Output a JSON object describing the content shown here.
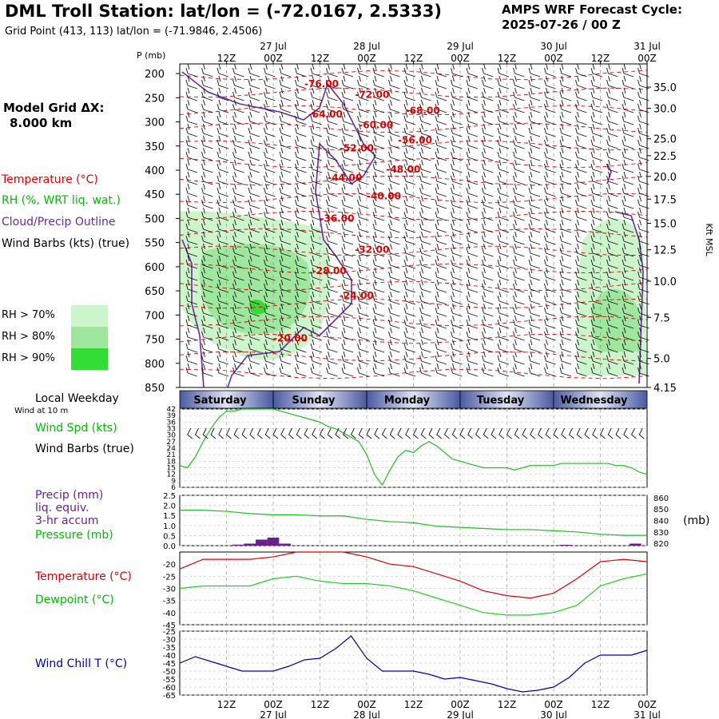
{
  "header": {
    "title": "DML Troll Station:  lat/lon = (-72.0167, 2.5333)",
    "grid_point": "Grid Point (413, 113) lat/lon = (-71.9846, 2.4506)",
    "cycle_label": "AMPS WRF Forecast Cycle:",
    "cycle_value": "2025-07-26 / 00  Z"
  },
  "left_panel": {
    "p_unit": "P (mb)",
    "model_grid_label": "Model Grid ΔX:",
    "model_grid_value": "8.000 km",
    "legend_temperature": "Temperature (°C)",
    "legend_rh": "RH (%, WRT liq. wat.)",
    "legend_cloud": "Cloud/Precip Outline",
    "legend_wind": "Wind Barbs (kts) (true)",
    "rh_levels": [
      {
        "label": "RH > 70%",
        "color": "#ccf5cc"
      },
      {
        "label": "RH > 80%",
        "color": "#9fe69f"
      },
      {
        "label": "RH > 90%",
        "color": "#33dd33"
      }
    ],
    "local_weekday": "Local Weekday",
    "wind_at_10m": "Wind at 10 m",
    "wind_spd_label": "Wind Spd (kts)",
    "wind_barbs_label": "Wind Barbs (true)",
    "precip_label": "Precip (mm)",
    "precip_sub1": "liq. equiv.",
    "precip_sub2": "3-hr accum",
    "pressure_label": "Pressure (mb)",
    "temp_label": "Temperature (°C)",
    "dewpoint_label": "Dewpoint (°C)",
    "windchill_label": "Wind Chill T (°C)"
  },
  "time_axis": {
    "hour_labels": [
      "12Z",
      "00Z",
      "12Z",
      "00Z",
      "12Z",
      "00Z",
      "12Z",
      "00Z",
      "12Z",
      "00Z"
    ],
    "date_labels": [
      "27 Jul",
      "28 Jul",
      "29 Jul",
      "30 Jul",
      "31 Jul"
    ],
    "weekdays": [
      "Saturday",
      "Sunday",
      "Monday",
      "Tuesday",
      "Wednesday"
    ]
  },
  "colors": {
    "temperature": "#dd0000",
    "rh": "#00bb00",
    "cloud": "#6a2a9a",
    "dewpoint": "#22cc22",
    "windchill": "#0000aa",
    "precip_bar": "#6a1f8a",
    "day_band_dark": "#4a5aa0",
    "day_band_light": "#dfe3f2"
  },
  "chart_data": [
    {
      "type": "heatmap",
      "panel": "cross-section",
      "title": "DML Troll Station:  lat/lon = (-72.0167, 2.5333)",
      "ylabel": "P (mb)",
      "ylabel_right": "Kft MSL",
      "pressure_ticks": [
        200,
        250,
        300,
        350,
        400,
        450,
        500,
        550,
        600,
        650,
        700,
        750,
        800,
        850
      ],
      "height_ticks_kft": [
        "35.0",
        "30.0",
        "25.0",
        "22.5",
        "20.0",
        "17.5",
        "15.0",
        "12.5",
        "10.0",
        "7.5",
        "5.0",
        "4.15"
      ],
      "height_tick_pressures": [
        228,
        272,
        335,
        370,
        413,
        460,
        510,
        565,
        630,
        705,
        790,
        850
      ],
      "ylim": [
        850,
        180
      ],
      "xlim_hours": [
        0,
        120
      ],
      "temperature_contours": [
        {
          "label": "-76.00",
          "t": 32,
          "p": 228
        },
        {
          "label": "-72.00",
          "t": 45,
          "p": 250
        },
        {
          "label": "-68.00",
          "t": 58,
          "p": 283
        },
        {
          "label": "-64.00",
          "t": 33,
          "p": 291
        },
        {
          "label": "-60.00",
          "t": 46,
          "p": 313
        },
        {
          "label": "-56.00",
          "t": 56,
          "p": 345
        },
        {
          "label": "-52.00",
          "t": 41,
          "p": 361
        },
        {
          "label": "-48.00",
          "t": 53,
          "p": 405
        },
        {
          "label": "-44.00",
          "t": 38,
          "p": 422
        },
        {
          "label": "-40.00",
          "t": 48,
          "p": 460
        },
        {
          "label": "-36.00",
          "t": 36,
          "p": 507
        },
        {
          "label": "-32.00",
          "t": 45,
          "p": 571
        },
        {
          "label": "-28.00",
          "t": 34,
          "p": 615
        },
        {
          "label": "-24.00",
          "t": 41,
          "p": 666
        },
        {
          "label": "-20.00",
          "t": 24,
          "p": 755
        }
      ]
    },
    {
      "type": "line",
      "panel": "wind-speed",
      "ylabel": "Wind Spd (kts)",
      "yticks": [
        6,
        9,
        12,
        15,
        18,
        21,
        24,
        27,
        30,
        33,
        36,
        39,
        42
      ],
      "ylim": [
        6,
        42
      ],
      "x": [
        0,
        2,
        4,
        6,
        8,
        10,
        12,
        14,
        16,
        18,
        20,
        22,
        24,
        26,
        28,
        30,
        32,
        34,
        36,
        38,
        40,
        42,
        44,
        46,
        48,
        50,
        52,
        54,
        56,
        58,
        60,
        62,
        64,
        66,
        68,
        70,
        72,
        74,
        76,
        78,
        80,
        82,
        84,
        86,
        88,
        90,
        92,
        94,
        96,
        98,
        100,
        102,
        104,
        106,
        108,
        110,
        112,
        114,
        116,
        118,
        120
      ],
      "values": [
        16,
        15,
        20,
        27,
        33,
        38,
        41,
        41,
        42,
        42,
        42,
        42,
        42,
        41,
        40,
        39,
        38,
        37,
        36,
        34,
        33,
        31,
        29,
        27,
        21,
        12,
        7,
        14,
        20,
        23,
        22,
        25,
        27,
        25,
        22,
        19,
        18,
        17,
        16,
        15,
        15,
        15,
        15,
        14,
        15,
        16,
        16,
        16,
        16,
        17,
        17,
        17,
        17,
        17,
        17,
        17,
        16,
        16,
        15,
        13,
        12
      ]
    },
    {
      "type": "bar",
      "panel": "precip-pressure",
      "ylabel": "Precip (mm)",
      "yticks": [
        0.0,
        0.5,
        1.0,
        1.5,
        2.0,
        2.5
      ],
      "ylim": [
        0,
        2.5
      ],
      "precip_hours": [
        15,
        18,
        21,
        24,
        27,
        99,
        117
      ],
      "precip_values": [
        0.05,
        0.1,
        0.3,
        0.4,
        0.1,
        0.04,
        0.1
      ],
      "pressure_axis_ticks": [
        820,
        830,
        840,
        850,
        860
      ],
      "pressure_unit": "(mb)",
      "pressure_ylim": [
        818,
        862
      ],
      "pressure_x": [
        0,
        6,
        12,
        18,
        24,
        30,
        36,
        42,
        48,
        54,
        60,
        66,
        72,
        78,
        84,
        90,
        96,
        102,
        108,
        114,
        120
      ],
      "pressure_values": [
        849,
        849,
        848,
        846,
        845,
        845,
        844,
        844,
        841,
        839,
        838,
        835,
        834,
        833,
        832,
        832,
        831,
        830,
        828,
        827,
        827
      ]
    },
    {
      "type": "line",
      "panel": "temperature-dewpoint",
      "yticks": [
        -45,
        -40,
        -35,
        -30,
        -25,
        -20
      ],
      "ylim": [
        -45,
        -15
      ],
      "x": [
        0,
        6,
        12,
        18,
        24,
        30,
        36,
        42,
        48,
        54,
        60,
        66,
        72,
        78,
        84,
        90,
        96,
        102,
        108,
        114,
        120
      ],
      "series": [
        {
          "name": "Temperature (°C)",
          "values": [
            -22,
            -18,
            -18,
            -18,
            -17,
            -15,
            -15,
            -15,
            -17,
            -20,
            -21,
            -24,
            -27,
            -31,
            -33,
            -34,
            -32,
            -26,
            -19,
            -18,
            -19
          ]
        },
        {
          "name": "Dewpoint (°C)",
          "values": [
            -30,
            -29,
            -29,
            -29,
            -26,
            -25,
            -27,
            -28,
            -28,
            -29,
            -31,
            -34,
            -37,
            -40,
            -41,
            -41,
            -40,
            -37,
            -29,
            -26,
            -24
          ]
        }
      ]
    },
    {
      "type": "line",
      "panel": "wind-chill",
      "ylabel": "Wind Chill T (°C)",
      "yticks": [
        -65,
        -60,
        -55,
        -50,
        -45,
        -40,
        -35,
        -30,
        -25
      ],
      "ylim": [
        -65,
        -25
      ],
      "x": [
        0,
        4,
        8,
        12,
        16,
        20,
        24,
        28,
        32,
        36,
        40,
        44,
        48,
        52,
        56,
        60,
        64,
        68,
        72,
        76,
        80,
        84,
        88,
        92,
        96,
        100,
        104,
        108,
        112,
        116,
        120
      ],
      "values": [
        -45,
        -41,
        -44,
        -47,
        -50,
        -50,
        -50,
        -47,
        -43,
        -42,
        -36,
        -28,
        -42,
        -50,
        -50,
        -50,
        -52,
        -55,
        -54,
        -56,
        -58,
        -61,
        -63,
        -62,
        -60,
        -54,
        -45,
        -40,
        -40,
        -40,
        -37
      ]
    }
  ]
}
